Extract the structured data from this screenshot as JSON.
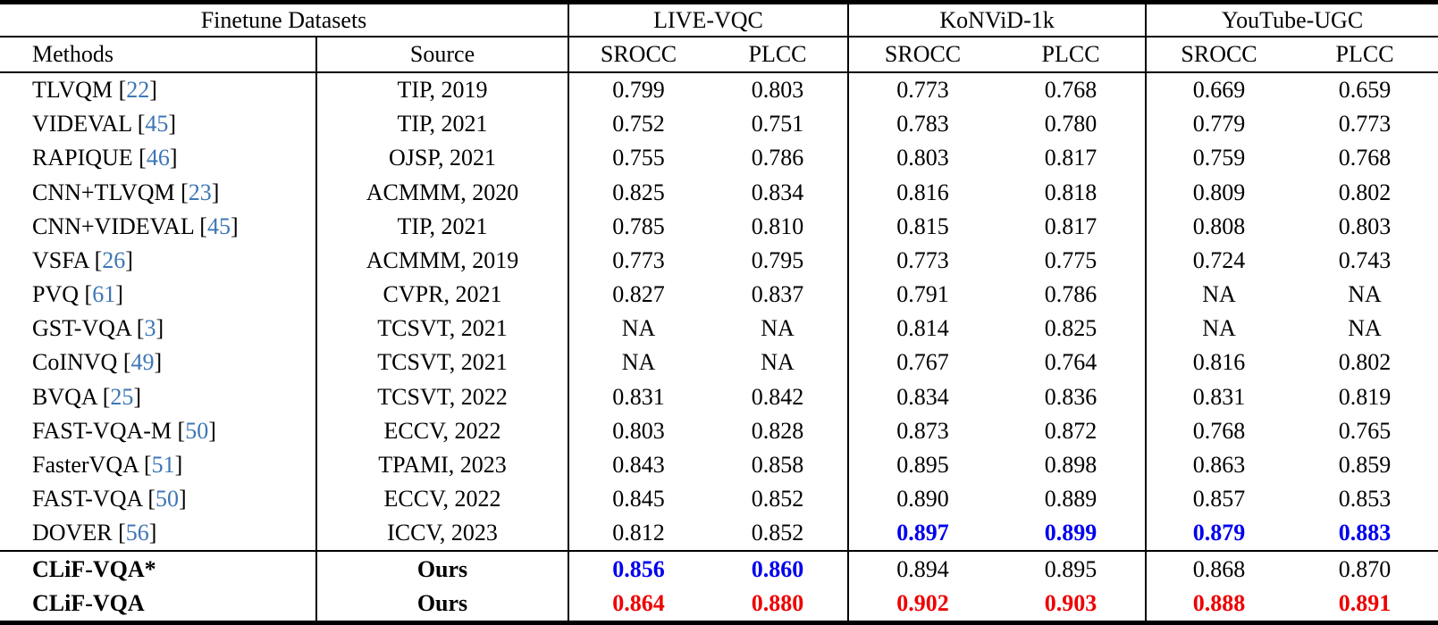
{
  "table": {
    "header": {
      "finetune_datasets_label": "Finetune Datasets",
      "datasets": [
        "LIVE-VQC",
        "KoNViD-1k",
        "YouTube-UGC"
      ],
      "methods_label": "Methods",
      "source_label": "Source",
      "srocc_label": "SROCC",
      "plcc_label": "PLCC"
    },
    "colors": {
      "citation_link": "#3d76b5",
      "best_red": "#ee0000",
      "second_best_blue": "#0000ee",
      "text": "#000000",
      "rule": "#000000"
    },
    "style_legend": {
      "n": "normal-black",
      "b": "second-best-blue-bold",
      "r": "best-red-bold"
    },
    "rows": [
      {
        "method": "TLVQM",
        "cite": "22",
        "source": "TIP, 2019",
        "bold": false,
        "group_start": false,
        "values": [
          "0.799",
          "0.803",
          "0.773",
          "0.768",
          "0.669",
          "0.659"
        ],
        "styles": [
          "n",
          "n",
          "n",
          "n",
          "n",
          "n"
        ]
      },
      {
        "method": "VIDEVAL",
        "cite": "45",
        "source": "TIP, 2021",
        "bold": false,
        "group_start": false,
        "values": [
          "0.752",
          "0.751",
          "0.783",
          "0.780",
          "0.779",
          "0.773"
        ],
        "styles": [
          "n",
          "n",
          "n",
          "n",
          "n",
          "n"
        ]
      },
      {
        "method": "RAPIQUE",
        "cite": "46",
        "source": "OJSP, 2021",
        "bold": false,
        "group_start": false,
        "values": [
          "0.755",
          "0.786",
          "0.803",
          "0.817",
          "0.759",
          "0.768"
        ],
        "styles": [
          "n",
          "n",
          "n",
          "n",
          "n",
          "n"
        ]
      },
      {
        "method": "CNN+TLVQM",
        "cite": "23",
        "source": "ACMMM, 2020",
        "bold": false,
        "group_start": false,
        "values": [
          "0.825",
          "0.834",
          "0.816",
          "0.818",
          "0.809",
          "0.802"
        ],
        "styles": [
          "n",
          "n",
          "n",
          "n",
          "n",
          "n"
        ]
      },
      {
        "method": "CNN+VIDEVAL",
        "cite": "45",
        "source": "TIP, 2021",
        "bold": false,
        "group_start": false,
        "values": [
          "0.785",
          "0.810",
          "0.815",
          "0.817",
          "0.808",
          "0.803"
        ],
        "styles": [
          "n",
          "n",
          "n",
          "n",
          "n",
          "n"
        ]
      },
      {
        "method": "VSFA",
        "cite": "26",
        "source": "ACMMM, 2019",
        "bold": false,
        "group_start": false,
        "values": [
          "0.773",
          "0.795",
          "0.773",
          "0.775",
          "0.724",
          "0.743"
        ],
        "styles": [
          "n",
          "n",
          "n",
          "n",
          "n",
          "n"
        ]
      },
      {
        "method": "PVQ",
        "cite": "61",
        "source": "CVPR, 2021",
        "bold": false,
        "group_start": false,
        "values": [
          "0.827",
          "0.837",
          "0.791",
          "0.786",
          "NA",
          "NA"
        ],
        "styles": [
          "n",
          "n",
          "n",
          "n",
          "n",
          "n"
        ]
      },
      {
        "method": "GST-VQA",
        "cite": "3",
        "source": "TCSVT, 2021",
        "bold": false,
        "group_start": false,
        "values": [
          "NA",
          "NA",
          "0.814",
          "0.825",
          "NA",
          "NA"
        ],
        "styles": [
          "n",
          "n",
          "n",
          "n",
          "n",
          "n"
        ]
      },
      {
        "method": "CoINVQ",
        "cite": "49",
        "source": "TCSVT, 2021",
        "bold": false,
        "group_start": false,
        "values": [
          "NA",
          "NA",
          "0.767",
          "0.764",
          "0.816",
          "0.802"
        ],
        "styles": [
          "n",
          "n",
          "n",
          "n",
          "n",
          "n"
        ]
      },
      {
        "method": "BVQA",
        "cite": "25",
        "source": "TCSVT, 2022",
        "bold": false,
        "group_start": false,
        "values": [
          "0.831",
          "0.842",
          "0.834",
          "0.836",
          "0.831",
          "0.819"
        ],
        "styles": [
          "n",
          "n",
          "n",
          "n",
          "n",
          "n"
        ]
      },
      {
        "method": "FAST-VQA-M",
        "cite": "50",
        "source": "ECCV, 2022",
        "bold": false,
        "group_start": false,
        "values": [
          "0.803",
          "0.828",
          "0.873",
          "0.872",
          "0.768",
          "0.765"
        ],
        "styles": [
          "n",
          "n",
          "n",
          "n",
          "n",
          "n"
        ]
      },
      {
        "method": "FasterVQA",
        "cite": "51",
        "source": "TPAMI, 2023",
        "bold": false,
        "group_start": false,
        "values": [
          "0.843",
          "0.858",
          "0.895",
          "0.898",
          "0.863",
          "0.859"
        ],
        "styles": [
          "n",
          "n",
          "n",
          "n",
          "n",
          "n"
        ]
      },
      {
        "method": "FAST-VQA",
        "cite": "50",
        "source": "ECCV, 2022",
        "bold": false,
        "group_start": false,
        "values": [
          "0.845",
          "0.852",
          "0.890",
          "0.889",
          "0.857",
          "0.853"
        ],
        "styles": [
          "n",
          "n",
          "n",
          "n",
          "n",
          "n"
        ]
      },
      {
        "method": "DOVER",
        "cite": "56",
        "source": "ICCV, 2023",
        "bold": false,
        "group_start": false,
        "values": [
          "0.812",
          "0.852",
          "0.897",
          "0.899",
          "0.879",
          "0.883"
        ],
        "styles": [
          "n",
          "n",
          "b",
          "b",
          "b",
          "b"
        ]
      },
      {
        "method": "CLiF-VQA*",
        "cite": null,
        "source": "Ours",
        "bold": true,
        "group_start": true,
        "values": [
          "0.856",
          "0.860",
          "0.894",
          "0.895",
          "0.868",
          "0.870"
        ],
        "styles": [
          "b",
          "b",
          "n",
          "n",
          "n",
          "n"
        ]
      },
      {
        "method": "CLiF-VQA",
        "cite": null,
        "source": "Ours",
        "bold": true,
        "group_start": false,
        "values": [
          "0.864",
          "0.880",
          "0.902",
          "0.903",
          "0.888",
          "0.891"
        ],
        "styles": [
          "r",
          "r",
          "r",
          "r",
          "r",
          "r"
        ]
      }
    ]
  }
}
